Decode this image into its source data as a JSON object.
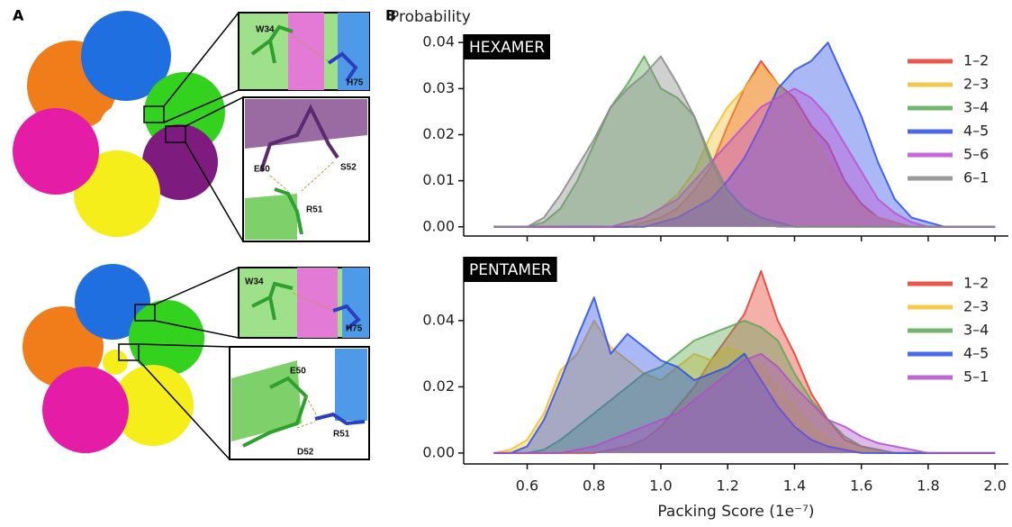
{
  "panel_a": {
    "label": "A",
    "hexamer_insets": [
      "W34",
      "H75",
      "E50",
      "S52",
      "R51"
    ],
    "pentamer_insets": [
      "W34",
      "H75",
      "E50",
      "R51",
      "D52"
    ]
  },
  "panel_b": {
    "label": "B"
  },
  "chart_data": [
    {
      "type": "area",
      "title": "HEXAMER",
      "y_label": "Probability",
      "x": [
        0.5,
        0.55,
        0.6,
        0.65,
        0.7,
        0.75,
        0.8,
        0.85,
        0.9,
        0.95,
        1.0,
        1.05,
        1.1,
        1.15,
        1.2,
        1.25,
        1.3,
        1.35,
        1.4,
        1.45,
        1.5,
        1.55,
        1.6,
        1.65,
        1.7,
        1.75,
        1.8,
        1.85,
        1.9,
        1.95,
        2.0
      ],
      "xlim": [
        0.41,
        2.04
      ],
      "xticks": [
        0.6,
        0.8,
        {
          "value": 1.0,
          "label": "1.0"
        },
        1.2,
        1.4,
        1.6,
        1.8,
        {
          "value": 2.0,
          "label": "2.0"
        }
      ],
      "ylim": [
        -0.002,
        0.0418
      ],
      "yticks": [
        {
          "value": 0,
          "label": "0.00"
        },
        0.01,
        0.02,
        0.03,
        0.04
      ],
      "legend": "upper right",
      "series": [
        {
          "name": "1–2",
          "color": "#e83a2a",
          "values": [
            0,
            0,
            0,
            0,
            0,
            0,
            0,
            0,
            0,
            0.001,
            0.002,
            0.004,
            0.008,
            0.013,
            0.022,
            0.03,
            0.036,
            0.031,
            0.028,
            0.022,
            0.018,
            0.01,
            0.005,
            0.002,
            0.001,
            0,
            0,
            0,
            0,
            0,
            0
          ]
        },
        {
          "name": "2–3",
          "color": "#f5bd2a",
          "values": [
            0,
            0,
            0,
            0,
            0,
            0,
            0,
            0,
            0.001,
            0.002,
            0.004,
            0.007,
            0.012,
            0.02,
            0.026,
            0.03,
            0.035,
            0.031,
            0.027,
            0.02,
            0.014,
            0.008,
            0.004,
            0.002,
            0.001,
            0,
            0,
            0,
            0,
            0,
            0
          ]
        },
        {
          "name": "3–4",
          "color": "#5aa852",
          "values": [
            0,
            0,
            0,
            0.001,
            0.004,
            0.01,
            0.018,
            0.026,
            0.031,
            0.037,
            0.03,
            0.028,
            0.024,
            0.015,
            0.008,
            0.004,
            0.002,
            0.001,
            0,
            0,
            0,
            0,
            0,
            0,
            0,
            0,
            0,
            0,
            0,
            0,
            0
          ]
        },
        {
          "name": "4–5",
          "color": "#2a4fe6",
          "values": [
            0,
            0,
            0,
            0,
            0,
            0,
            0,
            0,
            0,
            0,
            0.001,
            0.002,
            0.004,
            0.006,
            0.01,
            0.015,
            0.022,
            0.03,
            0.034,
            0.036,
            0.04,
            0.032,
            0.024,
            0.014,
            0.006,
            0.002,
            0.001,
            0,
            0,
            0,
            0
          ]
        },
        {
          "name": "5–6",
          "color": "#c04fd2",
          "values": [
            0,
            0,
            0,
            0,
            0,
            0,
            0,
            0,
            0.001,
            0.002,
            0.004,
            0.006,
            0.01,
            0.014,
            0.018,
            0.022,
            0.026,
            0.028,
            0.03,
            0.028,
            0.024,
            0.018,
            0.012,
            0.006,
            0.003,
            0.001,
            0,
            0,
            0,
            0,
            0
          ]
        },
        {
          "name": "6–1",
          "color": "#8a8a8a",
          "values": [
            0,
            0,
            0,
            0.002,
            0.007,
            0.013,
            0.019,
            0.026,
            0.03,
            0.033,
            0.037,
            0.031,
            0.024,
            0.014,
            0.007,
            0.003,
            0.001,
            0,
            0,
            0,
            0,
            0,
            0,
            0,
            0,
            0,
            0,
            0,
            0,
            0,
            0
          ]
        }
      ]
    },
    {
      "type": "area",
      "title": "PENTAMER",
      "x_label": "Packing Score (1e⁻⁷)",
      "x": [
        0.5,
        0.55,
        0.6,
        0.65,
        0.7,
        0.75,
        0.8,
        0.85,
        0.9,
        0.95,
        1.0,
        1.05,
        1.1,
        1.15,
        1.2,
        1.25,
        1.3,
        1.35,
        1.4,
        1.45,
        1.5,
        1.55,
        1.6,
        1.65,
        1.7,
        1.75,
        1.8,
        1.85,
        1.9,
        1.95,
        2.0
      ],
      "xlim": [
        0.41,
        2.04
      ],
      "xticks": [
        0.6,
        0.8,
        {
          "value": 1.0,
          "label": "1.0"
        },
        1.2,
        1.4,
        1.6,
        1.8,
        {
          "value": 2.0,
          "label": "2.0"
        }
      ],
      "ylim": [
        -0.0033,
        0.0593
      ],
      "yticks": [
        {
          "value": 0,
          "label": "0.00"
        },
        0.02,
        0.04
      ],
      "legend": "upper right",
      "series": [
        {
          "name": "1–2",
          "color": "#e83a2a",
          "values": [
            0,
            0,
            0,
            0,
            0,
            0,
            0,
            0.001,
            0.002,
            0.004,
            0.008,
            0.014,
            0.02,
            0.028,
            0.035,
            0.042,
            0.055,
            0.04,
            0.03,
            0.018,
            0.01,
            0.004,
            0.002,
            0.001,
            0,
            0,
            0,
            0,
            0,
            0,
            0
          ]
        },
        {
          "name": "2–3",
          "color": "#f5bd2a",
          "values": [
            0,
            0.001,
            0.004,
            0.012,
            0.025,
            0.03,
            0.04,
            0.032,
            0.028,
            0.024,
            0.022,
            0.026,
            0.03,
            0.028,
            0.032,
            0.03,
            0.026,
            0.02,
            0.014,
            0.008,
            0.004,
            0.002,
            0.001,
            0,
            0,
            0,
            0,
            0,
            0,
            0,
            0
          ]
        },
        {
          "name": "3–4",
          "color": "#5aa852",
          "values": [
            0,
            0,
            0,
            0.001,
            0.004,
            0.008,
            0.012,
            0.016,
            0.02,
            0.024,
            0.026,
            0.03,
            0.034,
            0.036,
            0.038,
            0.04,
            0.038,
            0.034,
            0.024,
            0.016,
            0.01,
            0.005,
            0.002,
            0.001,
            0,
            0,
            0,
            0,
            0,
            0,
            0
          ]
        },
        {
          "name": "4–5",
          "color": "#2a4fe6",
          "values": [
            0,
            0,
            0.002,
            0.01,
            0.022,
            0.035,
            0.047,
            0.03,
            0.036,
            0.032,
            0.028,
            0.026,
            0.022,
            0.024,
            0.026,
            0.03,
            0.022,
            0.014,
            0.008,
            0.004,
            0.002,
            0.001,
            0,
            0,
            0,
            0,
            0,
            0,
            0,
            0,
            0
          ]
        },
        {
          "name": "5–1",
          "color": "#b04fc8",
          "values": [
            0,
            0,
            0,
            0,
            0,
            0.001,
            0.002,
            0.004,
            0.006,
            0.008,
            0.01,
            0.012,
            0.016,
            0.02,
            0.024,
            0.028,
            0.03,
            0.026,
            0.02,
            0.015,
            0.01,
            0.008,
            0.005,
            0.003,
            0.002,
            0.001,
            0,
            0,
            0,
            0,
            0
          ]
        }
      ]
    }
  ]
}
